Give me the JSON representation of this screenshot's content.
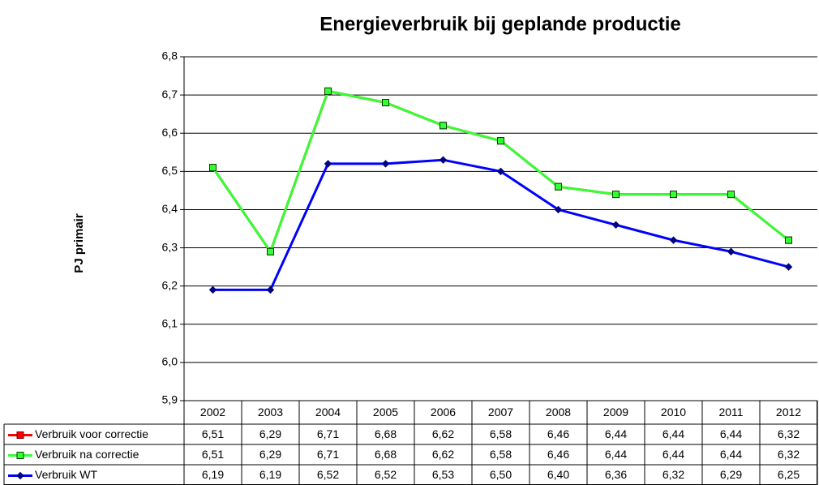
{
  "chart_data": {
    "type": "line",
    "title": "Energieverbruik bij geplande productie",
    "y_label": "PJ primair",
    "categories": [
      "2002",
      "2003",
      "2004",
      "2005",
      "2006",
      "2007",
      "2008",
      "2009",
      "2010",
      "2011",
      "2012"
    ],
    "series": [
      {
        "name": "Verbruik voor correctie",
        "color": "#ff0000",
        "marker": "square",
        "values": [
          6.51,
          6.29,
          6.71,
          6.68,
          6.62,
          6.58,
          6.46,
          6.44,
          6.44,
          6.44,
          6.32
        ],
        "value_labels": [
          "6,51",
          "6,29",
          "6,71",
          "6,68",
          "6,62",
          "6,58",
          "6,46",
          "6,44",
          "6,44",
          "6,44",
          "6,32"
        ]
      },
      {
        "name": "Verbruik na correctie",
        "color": "#33ff33",
        "marker": "square",
        "values": [
          6.51,
          6.29,
          6.71,
          6.68,
          6.62,
          6.58,
          6.46,
          6.44,
          6.44,
          6.44,
          6.32
        ],
        "value_labels": [
          "6,51",
          "6,29",
          "6,71",
          "6,68",
          "6,62",
          "6,58",
          "6,46",
          "6,44",
          "6,44",
          "6,44",
          "6,32"
        ]
      },
      {
        "name": "Verbruik WT",
        "color": "#0000ff",
        "marker": "diamond",
        "values": [
          6.19,
          6.19,
          6.52,
          6.52,
          6.53,
          6.5,
          6.4,
          6.36,
          6.32,
          6.29,
          6.25
        ],
        "value_labels": [
          "6,19",
          "6,19",
          "6,52",
          "6,52",
          "6,53",
          "6,50",
          "6,40",
          "6,36",
          "6,32",
          "6,29",
          "6,25"
        ]
      }
    ],
    "ylim": [
      5.9,
      6.8
    ],
    "yticks": [
      {
        "value": 5.9,
        "label": "5,9"
      },
      {
        "value": 6.0,
        "label": "6,0"
      },
      {
        "value": 6.1,
        "label": "6,1"
      },
      {
        "value": 6.2,
        "label": "6,2"
      },
      {
        "value": 6.3,
        "label": "6,3"
      },
      {
        "value": 6.4,
        "label": "6,4"
      },
      {
        "value": 6.5,
        "label": "6,5"
      },
      {
        "value": 6.6,
        "label": "6,6"
      },
      {
        "value": 6.7,
        "label": "6,7"
      },
      {
        "value": 6.8,
        "label": "6,8"
      }
    ],
    "grid": true
  }
}
